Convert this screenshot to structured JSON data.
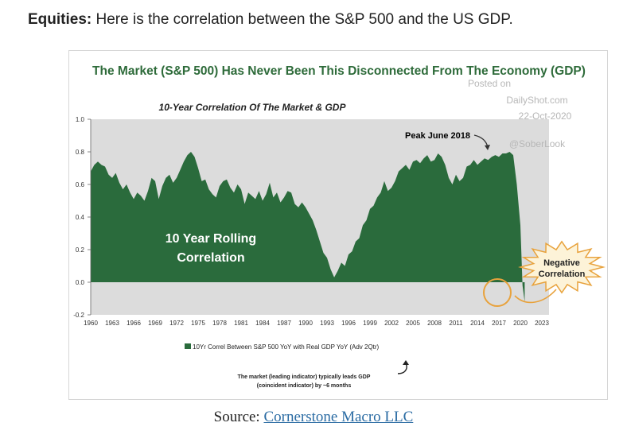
{
  "intro": {
    "label": "Equities:",
    "text": " Here is the correlation between the S&P 500 and the US GDP."
  },
  "source": {
    "prefix": "Source: ",
    "link_text": "Cornerstone Macro LLC"
  },
  "colors": {
    "fill": "#2a6b3c",
    "title": "#2e6b3a",
    "plot_bg": "#dcdcdc",
    "burst": "#fdf3d8",
    "burst_stroke": "#e8a23c",
    "circle": "#e8a23c",
    "link": "#2a6ba3"
  },
  "watermark": {
    "line1": "Posted on",
    "line2": "DailyShot.com",
    "line3": "22-Oct-2020",
    "line4": "@SoberLook"
  },
  "chart_data": {
    "type": "area",
    "title": "The Market (S&P 500) Has Never Been This Disconnected From The Economy (GDP)",
    "subtitle": "10-Year Correlation Of The Market & GDP",
    "ylim": [
      -0.2,
      1.0
    ],
    "xlim": [
      1960,
      2024
    ],
    "y_ticks": [
      "1.0",
      "0.8",
      "0.6",
      "0.4",
      "0.2",
      "0.0",
      "-0.2"
    ],
    "y_tick_values": [
      1.0,
      0.8,
      0.6,
      0.4,
      0.2,
      0.0,
      -0.2
    ],
    "x_ticks": [
      "1960",
      "1963",
      "1966",
      "1969",
      "1972",
      "1975",
      "1978",
      "1981",
      "1984",
      "1987",
      "1990",
      "1993",
      "1996",
      "1999",
      "2002",
      "2005",
      "2008",
      "2011",
      "2014",
      "2017",
      "2020",
      "2023"
    ],
    "x_tick_values": [
      1960,
      1963,
      1966,
      1969,
      1972,
      1975,
      1978,
      1981,
      1984,
      1987,
      1990,
      1993,
      1996,
      1999,
      2002,
      2005,
      2008,
      2011,
      2014,
      2017,
      2020,
      2023
    ],
    "series": [
      {
        "name": "10Yr Correl Between S&P 500 YoY with Real GDP YoY (Adv 2Qtr)",
        "x": [
          1960,
          1960.5,
          1961,
          1961.5,
          1962,
          1962.5,
          1963,
          1963.5,
          1964,
          1964.5,
          1965,
          1965.5,
          1966,
          1966.5,
          1967,
          1967.5,
          1968,
          1968.5,
          1969,
          1969.5,
          1970,
          1970.5,
          1971,
          1971.5,
          1972,
          1972.5,
          1973,
          1973.5,
          1974,
          1974.5,
          1975,
          1975.5,
          1976,
          1976.5,
          1977,
          1977.5,
          1978,
          1978.5,
          1979,
          1979.5,
          1980,
          1980.5,
          1981,
          1981.5,
          1982,
          1982.5,
          1983,
          1983.5,
          1984,
          1984.5,
          1985,
          1985.5,
          1986,
          1986.5,
          1987,
          1987.5,
          1988,
          1988.5,
          1989,
          1989.5,
          1990,
          1990.5,
          1991,
          1991.5,
          1992,
          1992.5,
          1993,
          1993.5,
          1994,
          1994.5,
          1995,
          1995.5,
          1996,
          1996.5,
          1997,
          1997.5,
          1998,
          1998.5,
          1999,
          1999.5,
          2000,
          2000.5,
          2001,
          2001.5,
          2002,
          2002.5,
          2003,
          2003.5,
          2004,
          2004.5,
          2005,
          2005.5,
          2006,
          2006.5,
          2007,
          2007.5,
          2008,
          2008.5,
          2009,
          2009.5,
          2010,
          2010.5,
          2011,
          2011.5,
          2012,
          2012.5,
          2013,
          2013.5,
          2014,
          2014.5,
          2015,
          2015.5,
          2016,
          2016.5,
          2017,
          2017.5,
          2018,
          2018.5,
          2019,
          2019.5,
          2020,
          2020.3,
          2020.6
        ],
        "values": [
          0.68,
          0.72,
          0.74,
          0.72,
          0.71,
          0.66,
          0.64,
          0.67,
          0.61,
          0.57,
          0.6,
          0.55,
          0.51,
          0.55,
          0.53,
          0.5,
          0.56,
          0.64,
          0.62,
          0.51,
          0.59,
          0.64,
          0.66,
          0.61,
          0.64,
          0.69,
          0.74,
          0.78,
          0.8,
          0.77,
          0.7,
          0.62,
          0.63,
          0.57,
          0.54,
          0.52,
          0.59,
          0.62,
          0.63,
          0.58,
          0.55,
          0.6,
          0.57,
          0.48,
          0.55,
          0.53,
          0.51,
          0.56,
          0.5,
          0.54,
          0.61,
          0.52,
          0.55,
          0.49,
          0.52,
          0.56,
          0.55,
          0.48,
          0.46,
          0.49,
          0.46,
          0.42,
          0.38,
          0.32,
          0.25,
          0.18,
          0.15,
          0.08,
          0.03,
          0.07,
          0.12,
          0.1,
          0.17,
          0.19,
          0.25,
          0.27,
          0.35,
          0.38,
          0.45,
          0.47,
          0.52,
          0.55,
          0.62,
          0.56,
          0.58,
          0.62,
          0.68,
          0.7,
          0.72,
          0.69,
          0.74,
          0.75,
          0.73,
          0.76,
          0.78,
          0.74,
          0.75,
          0.79,
          0.77,
          0.72,
          0.64,
          0.6,
          0.66,
          0.62,
          0.64,
          0.71,
          0.72,
          0.75,
          0.72,
          0.74,
          0.76,
          0.75,
          0.77,
          0.78,
          0.77,
          0.79,
          0.79,
          0.8,
          0.78,
          0.6,
          0.35,
          -0.02,
          -0.12
        ]
      }
    ],
    "inner_label": [
      "10 Year Rolling",
      "Correlation"
    ],
    "peak_annotation": "Peak June 2018",
    "burst_label": [
      "Negative",
      "Correlation"
    ],
    "legend": {
      "position": "bottom",
      "label": "10Yr Correl Between S&P 500 YoY with Real GDP YoY (Adv 2Qtr)"
    },
    "footnote": [
      "The market (leading indicator) typically leads GDP",
      "(coincident indicator) by ~6 months"
    ]
  }
}
